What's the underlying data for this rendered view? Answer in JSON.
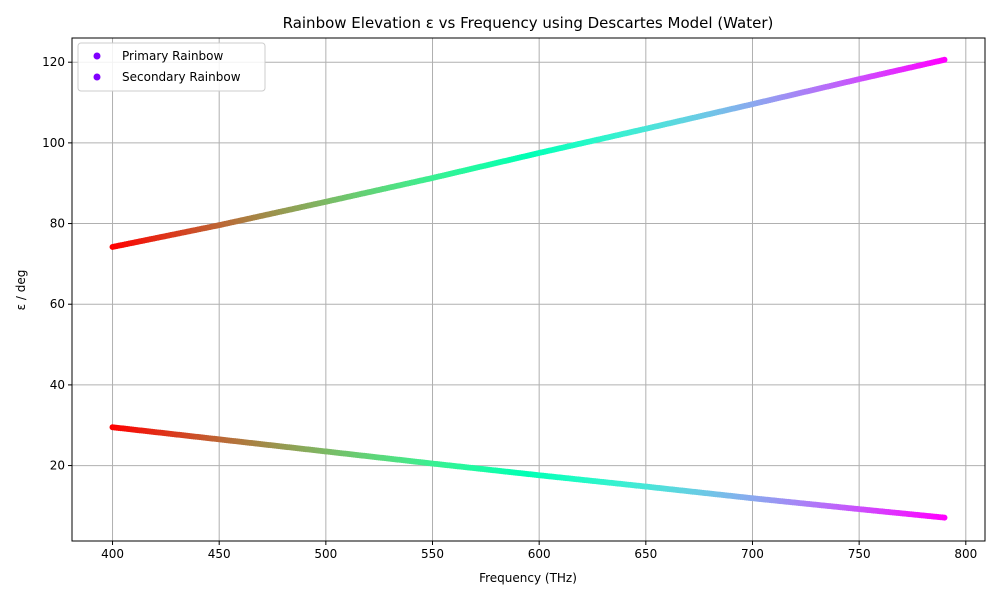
{
  "chart_data": {
    "type": "scatter",
    "title": "Rainbow Elevation ε vs Frequency using Descartes Model (Water)",
    "xlabel": "Frequency (THz)",
    "ylabel": "ε / deg",
    "xlim": [
      381,
      809
    ],
    "ylim": [
      1.3,
      126
    ],
    "xticks": [
      400,
      450,
      500,
      550,
      600,
      650,
      700,
      750,
      800
    ],
    "yticks": [
      20,
      40,
      60,
      80,
      100,
      120
    ],
    "grid": true,
    "legend_position": "top-left",
    "colormap": "rainbow",
    "legend_marker_color": "#8000ff",
    "grid_color": "#b0b0b0",
    "series": [
      {
        "name": "Primary Rainbow",
        "x": [
          400,
          450,
          500,
          550,
          600,
          650,
          700,
          750,
          790
        ],
        "y": [
          29.5,
          26.5,
          23.5,
          20.5,
          17.6,
          14.8,
          11.9,
          9.2,
          7.1
        ]
      },
      {
        "name": "Secondary Rainbow",
        "x": [
          400,
          450,
          500,
          550,
          600,
          650,
          700,
          750,
          790
        ],
        "y": [
          74.2,
          79.6,
          85.4,
          91.3,
          97.5,
          103.5,
          109.6,
          115.8,
          120.6
        ]
      }
    ]
  }
}
